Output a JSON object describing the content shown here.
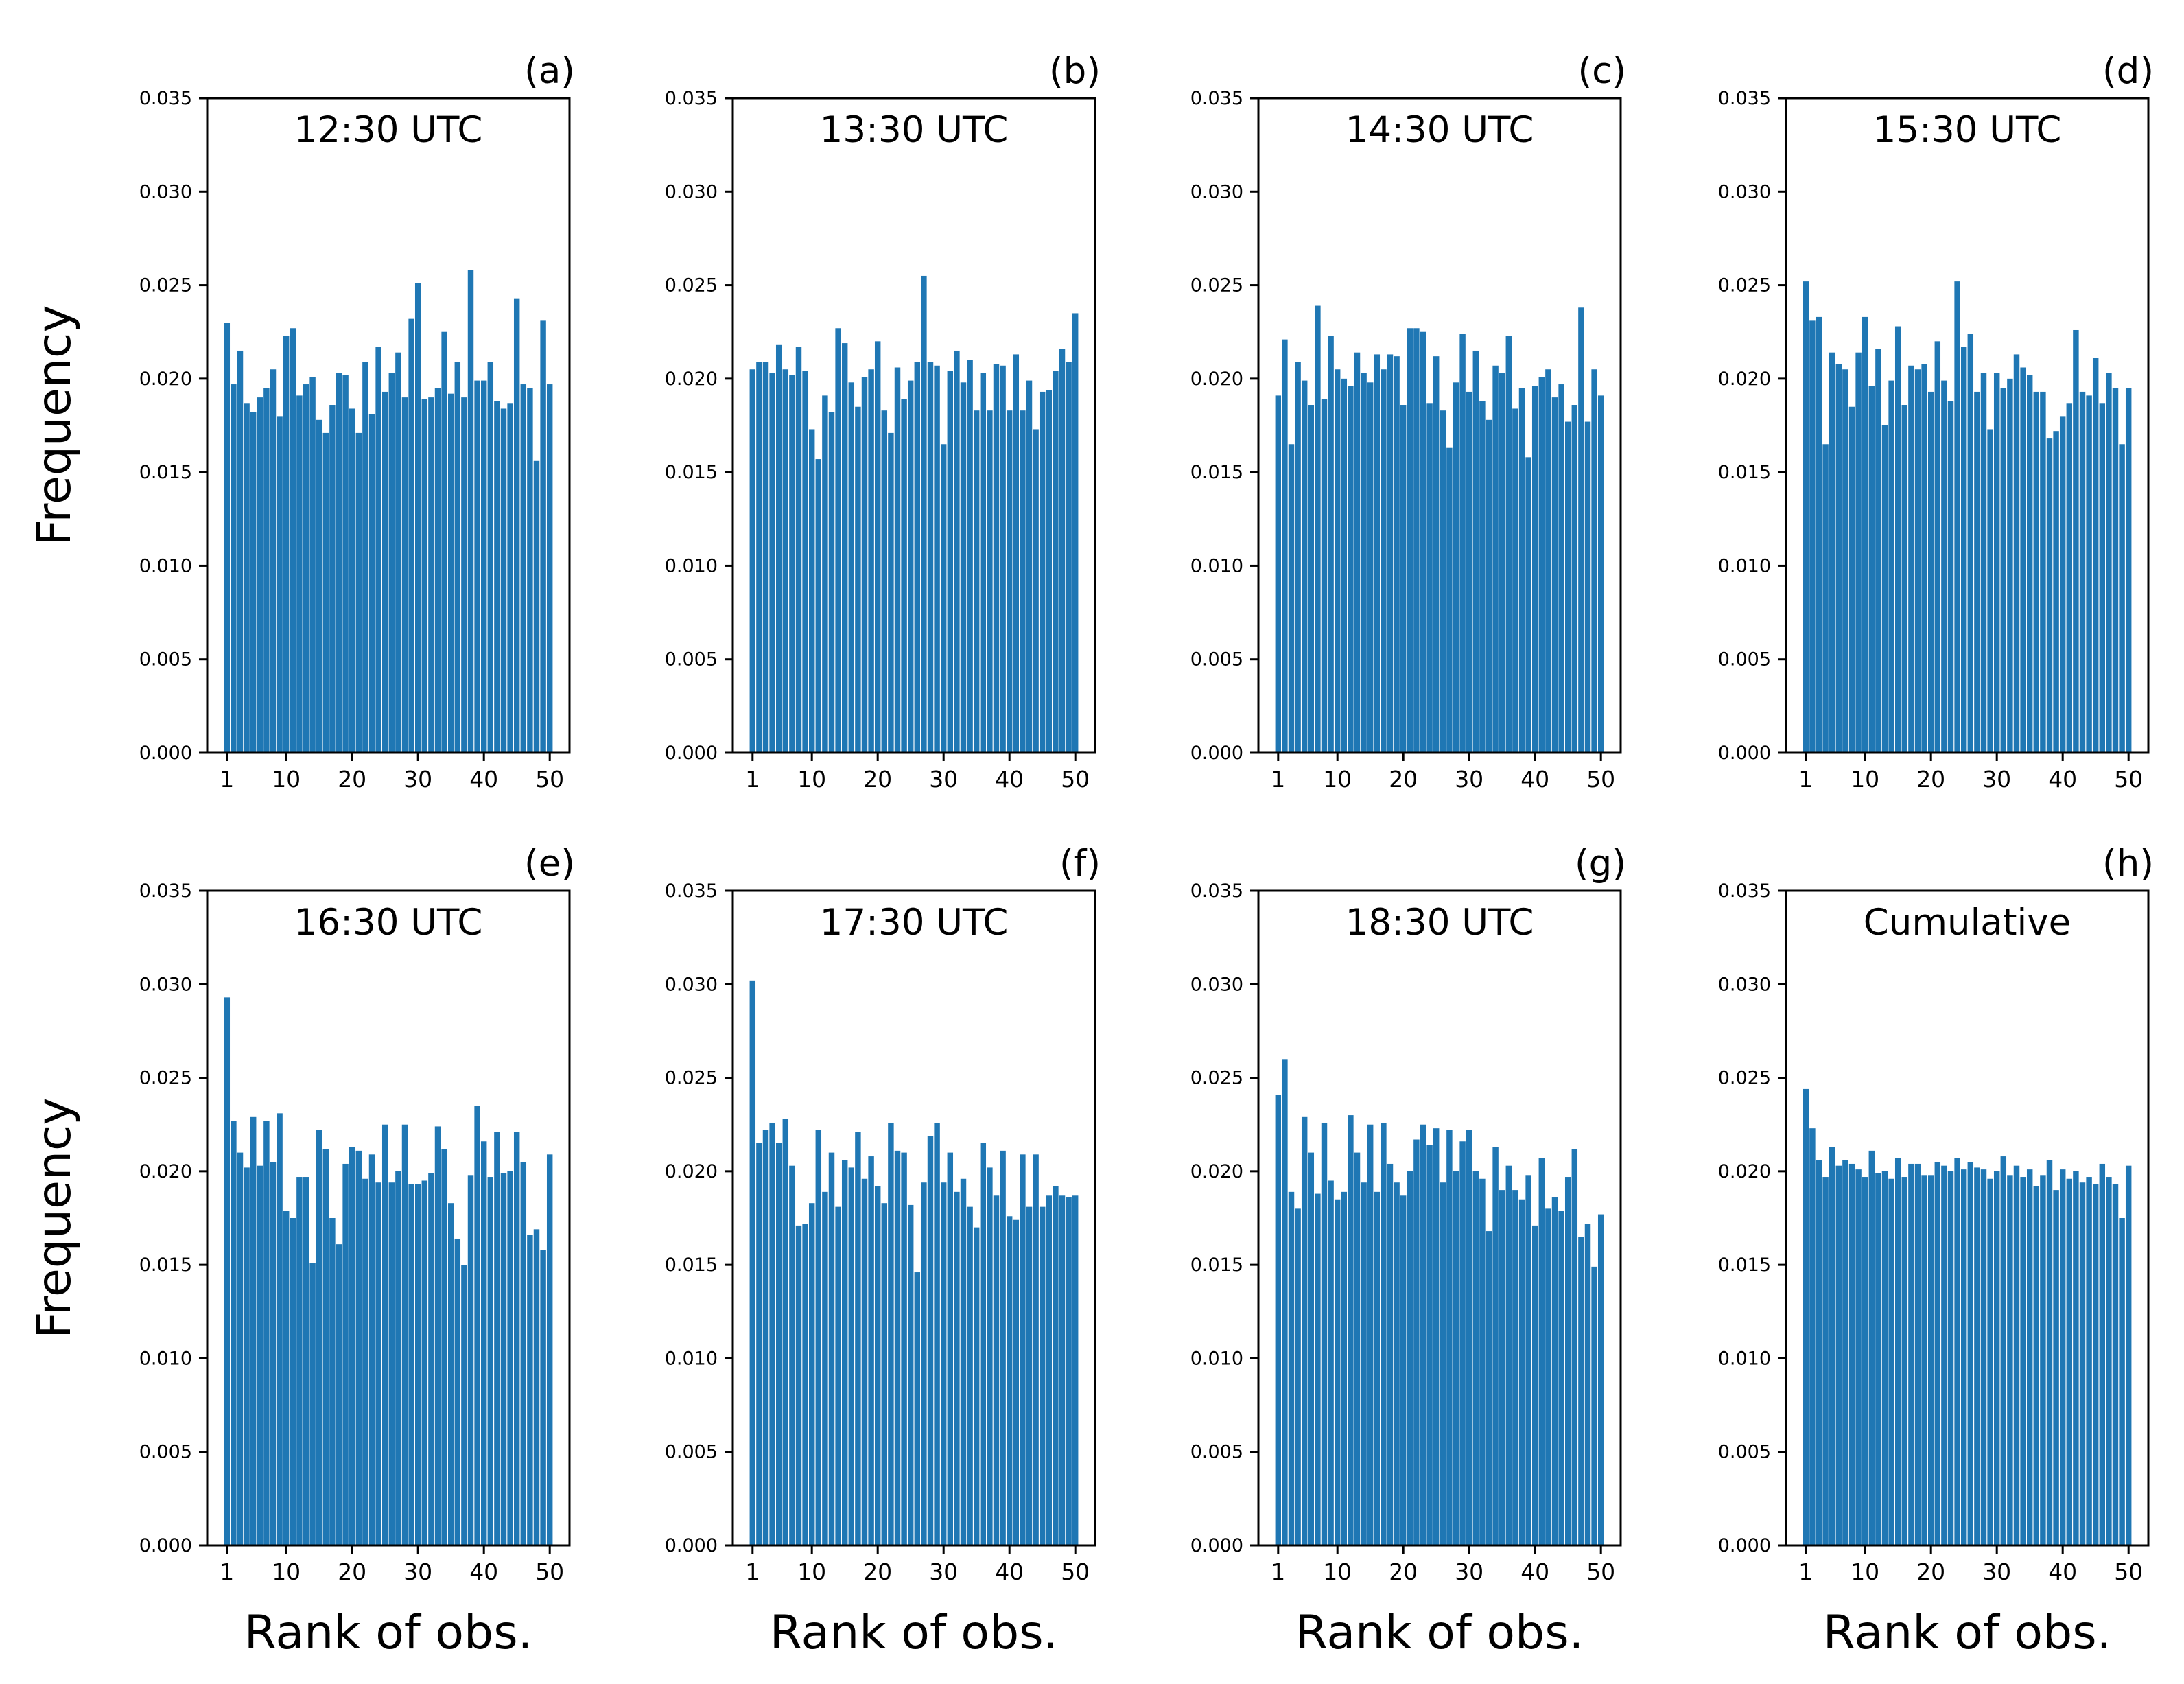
{
  "chart_data": [
    {
      "type": "bar",
      "panel_label": "(a)",
      "title": "12:30 UTC",
      "ylabel": "Frequency",
      "color": "#1f77b4",
      "x": [
        1,
        2,
        3,
        4,
        5,
        6,
        7,
        8,
        9,
        10,
        11,
        12,
        13,
        14,
        15,
        16,
        17,
        18,
        19,
        20,
        21,
        22,
        23,
        24,
        25,
        26,
        27,
        28,
        29,
        30,
        31,
        32,
        33,
        34,
        35,
        36,
        37,
        38,
        39,
        40,
        41,
        42,
        43,
        44,
        45,
        46,
        47,
        48,
        49,
        50
      ],
      "values": [
        0.023,
        0.0197,
        0.0215,
        0.0187,
        0.0182,
        0.019,
        0.0195,
        0.0205,
        0.018,
        0.0223,
        0.0227,
        0.0191,
        0.0197,
        0.0201,
        0.0178,
        0.0171,
        0.0186,
        0.0203,
        0.0202,
        0.0184,
        0.0171,
        0.0209,
        0.0181,
        0.0217,
        0.0193,
        0.0203,
        0.0214,
        0.019,
        0.0232,
        0.0251,
        0.0189,
        0.019,
        0.0195,
        0.0225,
        0.0192,
        0.0209,
        0.019,
        0.0258,
        0.0199,
        0.0199,
        0.0209,
        0.0188,
        0.0184,
        0.0187,
        0.0243,
        0.0197,
        0.0195,
        0.0156,
        0.0231,
        0.0197
      ],
      "xlim": [
        -2,
        53
      ],
      "ylim": [
        0,
        0.035
      ],
      "xticks": [
        1,
        10,
        20,
        30,
        40,
        50
      ],
      "yticks": [
        {
          "value": 0,
          "label": "0.000"
        },
        {
          "value": 0.005,
          "label": "0.005"
        },
        {
          "value": 0.01,
          "label": "0.010"
        },
        {
          "value": 0.015,
          "label": "0.015"
        },
        {
          "value": 0.02,
          "label": "0.020"
        },
        {
          "value": 0.025,
          "label": "0.025"
        },
        {
          "value": 0.03,
          "label": "0.030"
        },
        {
          "value": 0.035,
          "label": "0.035"
        }
      ]
    },
    {
      "type": "bar",
      "panel_label": "(b)",
      "title": "13:30 UTC",
      "color": "#1f77b4",
      "x": [
        1,
        2,
        3,
        4,
        5,
        6,
        7,
        8,
        9,
        10,
        11,
        12,
        13,
        14,
        15,
        16,
        17,
        18,
        19,
        20,
        21,
        22,
        23,
        24,
        25,
        26,
        27,
        28,
        29,
        30,
        31,
        32,
        33,
        34,
        35,
        36,
        37,
        38,
        39,
        40,
        41,
        42,
        43,
        44,
        45,
        46,
        47,
        48,
        49,
        50
      ],
      "values": [
        0.0205,
        0.0209,
        0.0209,
        0.0203,
        0.0218,
        0.0205,
        0.0202,
        0.0217,
        0.0204,
        0.0173,
        0.0157,
        0.0191,
        0.0182,
        0.0227,
        0.0219,
        0.0198,
        0.0185,
        0.0201,
        0.0205,
        0.022,
        0.0183,
        0.0171,
        0.0206,
        0.0189,
        0.0199,
        0.0209,
        0.0255,
        0.0209,
        0.0207,
        0.0165,
        0.0204,
        0.0215,
        0.0198,
        0.021,
        0.0183,
        0.0203,
        0.0183,
        0.0208,
        0.0207,
        0.0183,
        0.0213,
        0.0183,
        0.0199,
        0.0173,
        0.0193,
        0.0194,
        0.0204,
        0.0216,
        0.0209,
        0.0235
      ],
      "xlim": [
        -2,
        53
      ],
      "ylim": [
        0,
        0.035
      ],
      "xticks": [
        1,
        10,
        20,
        30,
        40,
        50
      ],
      "yticks": [
        {
          "value": 0,
          "label": "0.000"
        },
        {
          "value": 0.005,
          "label": "0.005"
        },
        {
          "value": 0.01,
          "label": "0.010"
        },
        {
          "value": 0.015,
          "label": "0.015"
        },
        {
          "value": 0.02,
          "label": "0.020"
        },
        {
          "value": 0.025,
          "label": "0.025"
        },
        {
          "value": 0.03,
          "label": "0.030"
        },
        {
          "value": 0.035,
          "label": "0.035"
        }
      ]
    },
    {
      "type": "bar",
      "panel_label": "(c)",
      "title": "14:30 UTC",
      "color": "#1f77b4",
      "x": [
        1,
        2,
        3,
        4,
        5,
        6,
        7,
        8,
        9,
        10,
        11,
        12,
        13,
        14,
        15,
        16,
        17,
        18,
        19,
        20,
        21,
        22,
        23,
        24,
        25,
        26,
        27,
        28,
        29,
        30,
        31,
        32,
        33,
        34,
        35,
        36,
        37,
        38,
        39,
        40,
        41,
        42,
        43,
        44,
        45,
        46,
        47,
        48,
        49,
        50
      ],
      "values": [
        0.0191,
        0.0221,
        0.0165,
        0.0209,
        0.0199,
        0.0186,
        0.0239,
        0.0189,
        0.0223,
        0.0205,
        0.02,
        0.0196,
        0.0214,
        0.0203,
        0.0198,
        0.0213,
        0.0205,
        0.0213,
        0.0212,
        0.0186,
        0.0227,
        0.0227,
        0.0225,
        0.0187,
        0.0212,
        0.0183,
        0.0163,
        0.0198,
        0.0224,
        0.0193,
        0.0215,
        0.0188,
        0.0178,
        0.0207,
        0.0203,
        0.0223,
        0.0184,
        0.0195,
        0.0158,
        0.0196,
        0.0201,
        0.0205,
        0.019,
        0.0197,
        0.0177,
        0.0186,
        0.0238,
        0.0177,
        0.0205,
        0.0191
      ],
      "xlim": [
        -2,
        53
      ],
      "ylim": [
        0,
        0.035
      ],
      "xticks": [
        1,
        10,
        20,
        30,
        40,
        50
      ],
      "yticks": [
        {
          "value": 0,
          "label": "0.000"
        },
        {
          "value": 0.005,
          "label": "0.005"
        },
        {
          "value": 0.01,
          "label": "0.010"
        },
        {
          "value": 0.015,
          "label": "0.015"
        },
        {
          "value": 0.02,
          "label": "0.020"
        },
        {
          "value": 0.025,
          "label": "0.025"
        },
        {
          "value": 0.03,
          "label": "0.030"
        },
        {
          "value": 0.035,
          "label": "0.035"
        }
      ]
    },
    {
      "type": "bar",
      "panel_label": "(d)",
      "title": "15:30 UTC",
      "color": "#1f77b4",
      "x": [
        1,
        2,
        3,
        4,
        5,
        6,
        7,
        8,
        9,
        10,
        11,
        12,
        13,
        14,
        15,
        16,
        17,
        18,
        19,
        20,
        21,
        22,
        23,
        24,
        25,
        26,
        27,
        28,
        29,
        30,
        31,
        32,
        33,
        34,
        35,
        36,
        37,
        38,
        39,
        40,
        41,
        42,
        43,
        44,
        45,
        46,
        47,
        48,
        49,
        50
      ],
      "values": [
        0.0252,
        0.0231,
        0.0233,
        0.0165,
        0.0214,
        0.0208,
        0.0205,
        0.0185,
        0.0214,
        0.0233,
        0.0196,
        0.0216,
        0.0175,
        0.0199,
        0.0228,
        0.0186,
        0.0207,
        0.0205,
        0.0208,
        0.0193,
        0.022,
        0.0199,
        0.0188,
        0.0252,
        0.0217,
        0.0224,
        0.0193,
        0.0203,
        0.0173,
        0.0203,
        0.0195,
        0.02,
        0.0213,
        0.0206,
        0.0202,
        0.0193,
        0.0193,
        0.0168,
        0.0172,
        0.018,
        0.0187,
        0.0226,
        0.0193,
        0.0191,
        0.0211,
        0.0187,
        0.0203,
        0.0195,
        0.0165,
        0.0195
      ],
      "xlim": [
        -2,
        53
      ],
      "ylim": [
        0,
        0.035
      ],
      "xticks": [
        1,
        10,
        20,
        30,
        40,
        50
      ],
      "yticks": [
        {
          "value": 0,
          "label": "0.000"
        },
        {
          "value": 0.005,
          "label": "0.005"
        },
        {
          "value": 0.01,
          "label": "0.010"
        },
        {
          "value": 0.015,
          "label": "0.015"
        },
        {
          "value": 0.02,
          "label": "0.020"
        },
        {
          "value": 0.025,
          "label": "0.025"
        },
        {
          "value": 0.03,
          "label": "0.030"
        },
        {
          "value": 0.035,
          "label": "0.035"
        }
      ]
    },
    {
      "type": "bar",
      "panel_label": "(e)",
      "title": "16:30 UTC",
      "ylabel": "Frequency",
      "xlabel": "Rank of obs.",
      "color": "#1f77b4",
      "x": [
        1,
        2,
        3,
        4,
        5,
        6,
        7,
        8,
        9,
        10,
        11,
        12,
        13,
        14,
        15,
        16,
        17,
        18,
        19,
        20,
        21,
        22,
        23,
        24,
        25,
        26,
        27,
        28,
        29,
        30,
        31,
        32,
        33,
        34,
        35,
        36,
        37,
        38,
        39,
        40,
        41,
        42,
        43,
        44,
        45,
        46,
        47,
        48,
        49,
        50
      ],
      "values": [
        0.0293,
        0.0227,
        0.021,
        0.0202,
        0.0229,
        0.0203,
        0.0227,
        0.0205,
        0.0231,
        0.0179,
        0.0175,
        0.0197,
        0.0197,
        0.0151,
        0.0222,
        0.0212,
        0.0175,
        0.0161,
        0.0204,
        0.0213,
        0.0211,
        0.0196,
        0.0209,
        0.0194,
        0.0225,
        0.0194,
        0.02,
        0.0225,
        0.0193,
        0.0193,
        0.0195,
        0.0199,
        0.0224,
        0.0212,
        0.0183,
        0.0164,
        0.015,
        0.0198,
        0.0235,
        0.0216,
        0.0197,
        0.0221,
        0.0199,
        0.02,
        0.0221,
        0.0205,
        0.0166,
        0.0169,
        0.0158,
        0.0209
      ],
      "xlim": [
        -2,
        53
      ],
      "ylim": [
        0,
        0.035
      ],
      "xticks": [
        1,
        10,
        20,
        30,
        40,
        50
      ],
      "yticks": [
        {
          "value": 0,
          "label": "0.000"
        },
        {
          "value": 0.005,
          "label": "0.005"
        },
        {
          "value": 0.01,
          "label": "0.010"
        },
        {
          "value": 0.015,
          "label": "0.015"
        },
        {
          "value": 0.02,
          "label": "0.020"
        },
        {
          "value": 0.025,
          "label": "0.025"
        },
        {
          "value": 0.03,
          "label": "0.030"
        },
        {
          "value": 0.035,
          "label": "0.035"
        }
      ]
    },
    {
      "type": "bar",
      "panel_label": "(f)",
      "title": "17:30 UTC",
      "xlabel": "Rank of obs.",
      "color": "#1f77b4",
      "x": [
        1,
        2,
        3,
        4,
        5,
        6,
        7,
        8,
        9,
        10,
        11,
        12,
        13,
        14,
        15,
        16,
        17,
        18,
        19,
        20,
        21,
        22,
        23,
        24,
        25,
        26,
        27,
        28,
        29,
        30,
        31,
        32,
        33,
        34,
        35,
        36,
        37,
        38,
        39,
        40,
        41,
        42,
        43,
        44,
        45,
        46,
        47,
        48,
        49,
        50
      ],
      "values": [
        0.0302,
        0.0215,
        0.0222,
        0.0226,
        0.0215,
        0.0228,
        0.0203,
        0.0171,
        0.0172,
        0.0183,
        0.0222,
        0.0189,
        0.021,
        0.0181,
        0.0206,
        0.0202,
        0.0221,
        0.0196,
        0.0208,
        0.0192,
        0.0183,
        0.0226,
        0.0211,
        0.021,
        0.0182,
        0.0146,
        0.0194,
        0.0219,
        0.0226,
        0.0194,
        0.021,
        0.0189,
        0.0196,
        0.0181,
        0.017,
        0.0215,
        0.0202,
        0.0187,
        0.0211,
        0.0176,
        0.0174,
        0.0209,
        0.0181,
        0.0209,
        0.0181,
        0.0187,
        0.0192,
        0.0187,
        0.0186,
        0.0187
      ],
      "xlim": [
        -2,
        53
      ],
      "ylim": [
        0,
        0.035
      ],
      "xticks": [
        1,
        10,
        20,
        30,
        40,
        50
      ],
      "yticks": [
        {
          "value": 0,
          "label": "0.000"
        },
        {
          "value": 0.005,
          "label": "0.005"
        },
        {
          "value": 0.01,
          "label": "0.010"
        },
        {
          "value": 0.015,
          "label": "0.015"
        },
        {
          "value": 0.02,
          "label": "0.020"
        },
        {
          "value": 0.025,
          "label": "0.025"
        },
        {
          "value": 0.03,
          "label": "0.030"
        },
        {
          "value": 0.035,
          "label": "0.035"
        }
      ]
    },
    {
      "type": "bar",
      "panel_label": "(g)",
      "title": "18:30 UTC",
      "xlabel": "Rank of obs.",
      "color": "#1f77b4",
      "x": [
        1,
        2,
        3,
        4,
        5,
        6,
        7,
        8,
        9,
        10,
        11,
        12,
        13,
        14,
        15,
        16,
        17,
        18,
        19,
        20,
        21,
        22,
        23,
        24,
        25,
        26,
        27,
        28,
        29,
        30,
        31,
        32,
        33,
        34,
        35,
        36,
        37,
        38,
        39,
        40,
        41,
        42,
        43,
        44,
        45,
        46,
        47,
        48,
        49,
        50
      ],
      "values": [
        0.0241,
        0.026,
        0.0189,
        0.018,
        0.0229,
        0.021,
        0.0188,
        0.0226,
        0.0195,
        0.0185,
        0.0189,
        0.023,
        0.021,
        0.0194,
        0.0225,
        0.0189,
        0.0226,
        0.0204,
        0.0194,
        0.0187,
        0.02,
        0.0217,
        0.0225,
        0.0214,
        0.0223,
        0.0194,
        0.0222,
        0.02,
        0.0216,
        0.0222,
        0.02,
        0.0196,
        0.0168,
        0.0213,
        0.019,
        0.0203,
        0.019,
        0.0185,
        0.0198,
        0.0171,
        0.0207,
        0.018,
        0.0186,
        0.0179,
        0.0197,
        0.0212,
        0.0165,
        0.0172,
        0.0149,
        0.0177
      ],
      "xlim": [
        -2,
        53
      ],
      "ylim": [
        0,
        0.035
      ],
      "xticks": [
        1,
        10,
        20,
        30,
        40,
        50
      ],
      "yticks": [
        {
          "value": 0,
          "label": "0.000"
        },
        {
          "value": 0.005,
          "label": "0.005"
        },
        {
          "value": 0.01,
          "label": "0.010"
        },
        {
          "value": 0.015,
          "label": "0.015"
        },
        {
          "value": 0.02,
          "label": "0.020"
        },
        {
          "value": 0.025,
          "label": "0.025"
        },
        {
          "value": 0.03,
          "label": "0.030"
        },
        {
          "value": 0.035,
          "label": "0.035"
        }
      ]
    },
    {
      "type": "bar",
      "panel_label": "(h)",
      "title": "Cumulative",
      "xlabel": "Rank of obs.",
      "color": "#1f77b4",
      "x": [
        1,
        2,
        3,
        4,
        5,
        6,
        7,
        8,
        9,
        10,
        11,
        12,
        13,
        14,
        15,
        16,
        17,
        18,
        19,
        20,
        21,
        22,
        23,
        24,
        25,
        26,
        27,
        28,
        29,
        30,
        31,
        32,
        33,
        34,
        35,
        36,
        37,
        38,
        39,
        40,
        41,
        42,
        43,
        44,
        45,
        46,
        47,
        48,
        49,
        50
      ],
      "values": [
        0.0244,
        0.0223,
        0.0206,
        0.0197,
        0.0213,
        0.0203,
        0.0206,
        0.0204,
        0.0201,
        0.0197,
        0.0211,
        0.0199,
        0.02,
        0.0196,
        0.0207,
        0.0197,
        0.0204,
        0.0204,
        0.0198,
        0.0198,
        0.0205,
        0.0203,
        0.02,
        0.0207,
        0.0201,
        0.0205,
        0.0202,
        0.0201,
        0.0196,
        0.02,
        0.0208,
        0.0198,
        0.0203,
        0.0197,
        0.0201,
        0.0192,
        0.0198,
        0.0206,
        0.019,
        0.0201,
        0.0196,
        0.02,
        0.0194,
        0.0197,
        0.0193,
        0.0204,
        0.0197,
        0.0193,
        0.0175,
        0.0203
      ],
      "xlim": [
        -2,
        53
      ],
      "ylim": [
        0,
        0.035
      ],
      "xticks": [
        1,
        10,
        20,
        30,
        40,
        50
      ],
      "yticks": [
        {
          "value": 0,
          "label": "0.000"
        },
        {
          "value": 0.005,
          "label": "0.005"
        },
        {
          "value": 0.01,
          "label": "0.010"
        },
        {
          "value": 0.015,
          "label": "0.015"
        },
        {
          "value": 0.02,
          "label": "0.020"
        },
        {
          "value": 0.025,
          "label": "0.025"
        },
        {
          "value": 0.03,
          "label": "0.030"
        },
        {
          "value": 0.035,
          "label": "0.035"
        }
      ]
    }
  ]
}
